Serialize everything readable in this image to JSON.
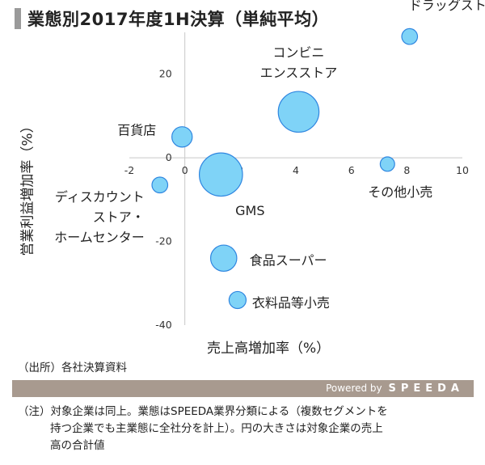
{
  "title": "業態別2017年度1H決算（単純平均）",
  "source": "（出所）各社決算資料",
  "powered_by": {
    "prefix": "Powered by",
    "brand": "SPEEDA"
  },
  "note": {
    "line1": "（注）対象企業は同上。業態はSPEEDA業界分類による（複数セグメントを",
    "line2": "持つ企業でも主業態に全社分を計上）。円の大きさは対象企業の売上",
    "line3": "高の合計値"
  },
  "colors": {
    "bubble_fill": "#7fd3f7",
    "bubble_stroke": "#2f86e0",
    "axis": "#c8c8c8",
    "title_bar": "#9a9a9a",
    "footer_bar": "#a89a8f"
  },
  "chart_data": {
    "type": "bubble",
    "title": "業態別2017年度1H決算（単純平均）",
    "xlabel": "売上高増加率（%）",
    "ylabel": "営業利益増加率（%）",
    "xlim": [
      -2,
      10
    ],
    "ylim": [
      -40,
      30
    ],
    "x_ticks": [
      "-2",
      "0",
      "2",
      "4",
      "6",
      "8",
      "10"
    ],
    "y_ticks": [
      "20",
      "0",
      "-20",
      "-40"
    ],
    "grid": false,
    "series": [
      {
        "label": [
          "ドラッグストア"
        ],
        "x": 8.1,
        "y": 29,
        "size": 2.4
      },
      {
        "label": [
          "コンビニ",
          "エンスストア"
        ],
        "x": 4.1,
        "y": 11,
        "size": 16
      },
      {
        "label": [
          "百貨店"
        ],
        "x": -0.1,
        "y": 5,
        "size": 4
      },
      {
        "label": [
          "その他小売"
        ],
        "x": 7.3,
        "y": -1.5,
        "size": 2
      },
      {
        "label": [
          "ディスカウント",
          "ストア・",
          "ホームセンター"
        ],
        "x": -0.9,
        "y": -6.5,
        "size": 2.4
      },
      {
        "label": [
          "GMS"
        ],
        "x": 1.3,
        "y": -4,
        "size": 18
      },
      {
        "label": [
          "食品スーパー"
        ],
        "x": 1.4,
        "y": -24,
        "size": 6.6
      },
      {
        "label": [
          "衣料品等小売"
        ],
        "x": 1.9,
        "y": -34,
        "size": 2.8
      }
    ]
  }
}
